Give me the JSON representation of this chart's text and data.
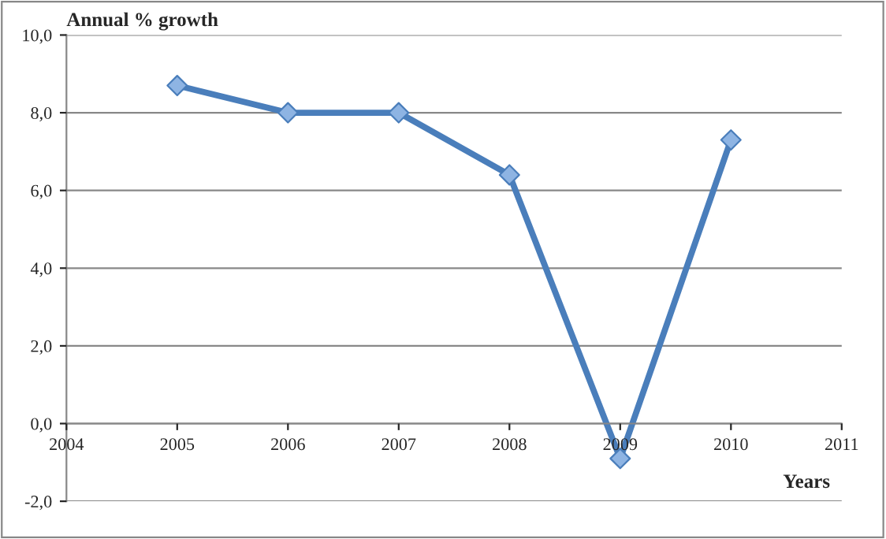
{
  "chart_data": {
    "type": "line",
    "ylabel": "Annual % growth",
    "xlabel": "Years",
    "x": [
      2005,
      2006,
      2007,
      2008,
      2009,
      2010
    ],
    "series": [
      {
        "color": "#4a7ebb",
        "values": [
          8.7,
          8.0,
          8.0,
          6.4,
          -0.9,
          7.3
        ]
      }
    ],
    "xlim": [
      2004,
      2011
    ],
    "xticks": [
      2004,
      2005,
      2006,
      2007,
      2008,
      2009,
      2010,
      2011
    ],
    "ylim": [
      -2,
      10
    ],
    "yticks": [
      {
        "value": -2,
        "label": "-2,0"
      },
      {
        "value": 0,
        "label": "0,0"
      },
      {
        "value": 2,
        "label": "2,0"
      },
      {
        "value": 4,
        "label": "4,0"
      },
      {
        "value": 6,
        "label": "6,0"
      },
      {
        "value": 8,
        "label": "8,0"
      },
      {
        "value": 10,
        "label": "10,0"
      }
    ],
    "grid": "y",
    "marker": "diamond",
    "line_style": "solid"
  }
}
